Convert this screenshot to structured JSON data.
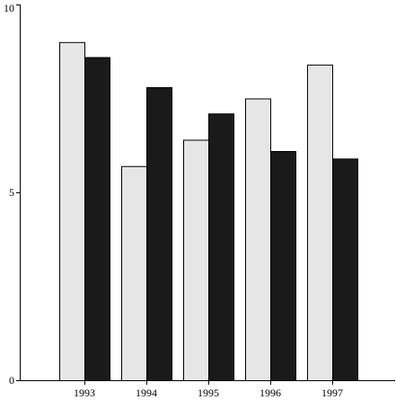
{
  "chart_data": {
    "type": "bar",
    "categories": [
      "1993",
      "1994",
      "1995",
      "1996",
      "1997"
    ],
    "series": [
      {
        "values": [
          9.0,
          5.7,
          6.4,
          7.5,
          8.4
        ],
        "color": "#e6e6e6"
      },
      {
        "values": [
          8.6,
          7.8,
          7.1,
          6.1,
          5.9
        ],
        "color": "#1a1a1a"
      }
    ],
    "title": "",
    "xlabel": "",
    "ylabel": "",
    "ylim": [
      0,
      10
    ],
    "yticks": [
      "0",
      "5",
      "10"
    ],
    "grid": false,
    "legend": "none",
    "bar_outline_color": "#000000"
  }
}
